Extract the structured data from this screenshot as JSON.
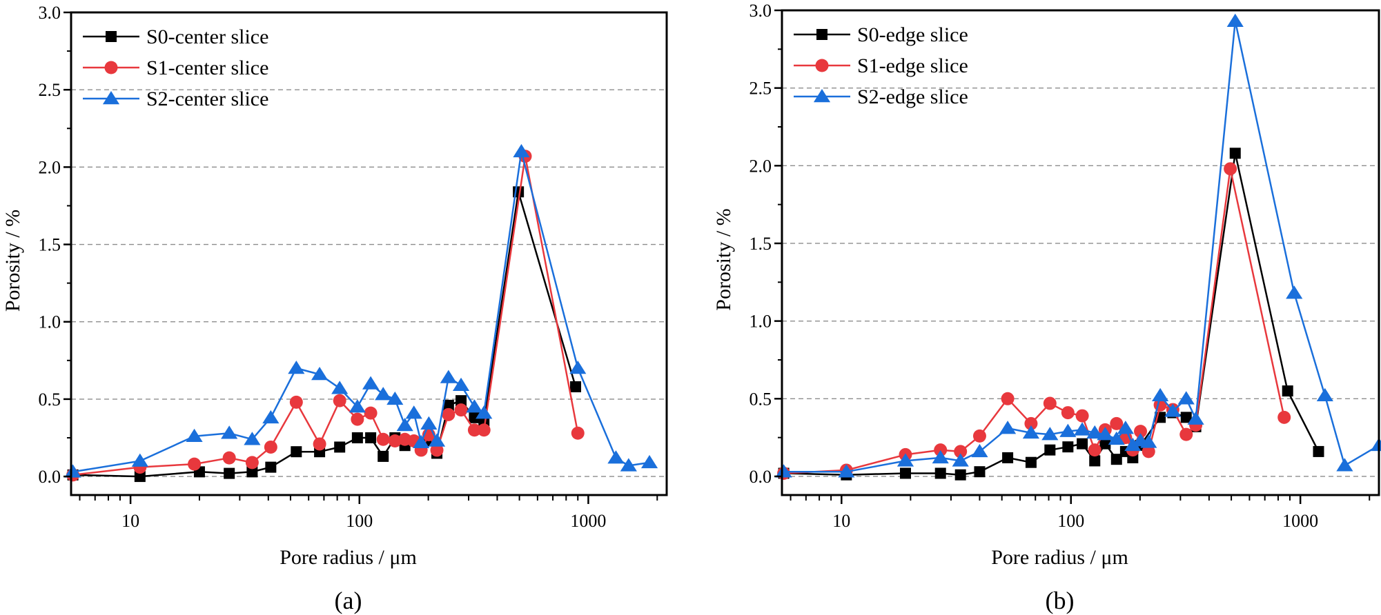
{
  "colors": {
    "S0": "#000000",
    "S1": "#e8383d",
    "S2": "#1a6fdb"
  },
  "chart_data": [
    {
      "type": "line",
      "panel_label": "(a)",
      "xlabel": "Pore radius / μm",
      "ylabel": "Porosity / %",
      "xscale": "log",
      "xlim": [
        5.5,
        2200
      ],
      "ylim": [
        -0.12,
        3.0
      ],
      "xticks": [
        10,
        100,
        1000
      ],
      "xtick_labels": [
        "10",
        "100",
        "1000"
      ],
      "yticks": [
        0.0,
        0.5,
        1.0,
        1.5,
        2.0,
        2.5,
        3.0
      ],
      "ytick_labels": [
        "0.0",
        "0.5",
        "1.0",
        "1.5",
        "2.0",
        "2.5",
        "3.0"
      ],
      "grid": "horizontal-dashed",
      "legend_position": "top-left",
      "series": [
        {
          "name": "S0-center slice",
          "key": "S0",
          "marker": "square",
          "x": [
            5.6,
            11,
            20,
            27,
            34,
            41,
            53,
            67,
            82,
            98,
            112,
            127,
            143,
            158,
            186,
            201,
            218,
            245,
            278,
            318,
            350,
            495,
            880
          ],
          "y": [
            0.01,
            0.0,
            0.03,
            0.02,
            0.03,
            0.06,
            0.16,
            0.16,
            0.19,
            0.25,
            0.25,
            0.13,
            0.25,
            0.2,
            0.22,
            0.23,
            0.15,
            0.46,
            0.49,
            0.38,
            0.36,
            1.84,
            0.58
          ]
        },
        {
          "name": "S1-center slice",
          "key": "S1",
          "marker": "circle",
          "x": [
            5.6,
            11,
            19,
            27,
            34,
            41,
            53,
            67,
            82,
            98,
            112,
            127,
            143,
            158,
            173,
            186,
            201,
            218,
            245,
            278,
            318,
            350,
            530,
            900
          ],
          "y": [
            0.01,
            0.06,
            0.08,
            0.12,
            0.09,
            0.19,
            0.48,
            0.21,
            0.49,
            0.37,
            0.41,
            0.24,
            0.23,
            0.24,
            0.23,
            0.17,
            0.27,
            0.17,
            0.4,
            0.43,
            0.3,
            0.3,
            2.07,
            0.28
          ]
        },
        {
          "name": "S2-center slice",
          "key": "S2",
          "marker": "triangle",
          "x": [
            5.6,
            11,
            19,
            27,
            34,
            41,
            53,
            67,
            82,
            98,
            112,
            127,
            143,
            158,
            173,
            186,
            201,
            218,
            245,
            278,
            318,
            350,
            510,
            900,
            1320,
            1500,
            1850
          ],
          "y": [
            0.03,
            0.1,
            0.26,
            0.28,
            0.24,
            0.38,
            0.7,
            0.66,
            0.57,
            0.45,
            0.6,
            0.53,
            0.5,
            0.33,
            0.41,
            0.22,
            0.34,
            0.23,
            0.64,
            0.59,
            0.45,
            0.41,
            2.1,
            0.7,
            0.12,
            0.07,
            0.09
          ]
        }
      ]
    },
    {
      "type": "line",
      "panel_label": "(b)",
      "xlabel": "Pore radius / μm",
      "ylabel": "Porosity / %",
      "xscale": "log",
      "xlim": [
        5.5,
        2200
      ],
      "ylim": [
        -0.12,
        3.0
      ],
      "xticks": [
        10,
        100,
        1000
      ],
      "xtick_labels": [
        "10",
        "100",
        "1000"
      ],
      "yticks": [
        0.0,
        0.5,
        1.0,
        1.5,
        2.0,
        2.5,
        3.0
      ],
      "ytick_labels": [
        "0.0",
        "0.5",
        "1.0",
        "1.5",
        "2.0",
        "2.5",
        "3.0"
      ],
      "grid": "horizontal-dashed",
      "legend_position": "top-left",
      "series": [
        {
          "name": "S0-edge slice",
          "key": "S0",
          "marker": "square",
          "x": [
            5.6,
            10.5,
            19,
            27,
            33,
            40,
            53,
            67,
            81,
            97,
            112,
            127,
            141,
            158,
            173,
            186,
            201,
            245,
            278,
            318,
            350,
            520,
            880,
            1200
          ],
          "y": [
            0.02,
            0.01,
            0.02,
            0.02,
            0.01,
            0.03,
            0.12,
            0.09,
            0.17,
            0.19,
            0.21,
            0.1,
            0.21,
            0.11,
            0.16,
            0.12,
            0.2,
            0.38,
            0.41,
            0.38,
            0.32,
            2.08,
            0.55,
            0.16
          ]
        },
        {
          "name": "S1-edge slice",
          "key": "S1",
          "marker": "circle",
          "x": [
            5.6,
            10.5,
            19,
            27,
            33,
            40,
            53,
            67,
            81,
            97,
            112,
            127,
            141,
            158,
            173,
            186,
            201,
            218,
            245,
            278,
            318,
            350,
            495,
            850
          ],
          "y": [
            0.02,
            0.04,
            0.14,
            0.17,
            0.16,
            0.26,
            0.5,
            0.34,
            0.47,
            0.41,
            0.39,
            0.17,
            0.3,
            0.34,
            0.25,
            0.17,
            0.29,
            0.16,
            0.46,
            0.43,
            0.27,
            0.33,
            1.98,
            0.38
          ]
        },
        {
          "name": "S2-edge slice",
          "key": "S2",
          "marker": "triangle",
          "x": [
            5.6,
            10.5,
            19,
            27,
            33,
            40,
            53,
            67,
            81,
            97,
            112,
            127,
            141,
            158,
            173,
            186,
            201,
            218,
            245,
            278,
            318,
            350,
            520,
            940,
            1280,
            1560,
            2200
          ],
          "y": [
            0.03,
            0.03,
            0.1,
            0.12,
            0.1,
            0.16,
            0.31,
            0.28,
            0.27,
            0.29,
            0.3,
            0.28,
            0.27,
            0.24,
            0.31,
            0.2,
            0.23,
            0.22,
            0.52,
            0.42,
            0.5,
            0.37,
            2.93,
            1.18,
            0.52,
            0.07,
            0.2
          ]
        }
      ]
    }
  ]
}
